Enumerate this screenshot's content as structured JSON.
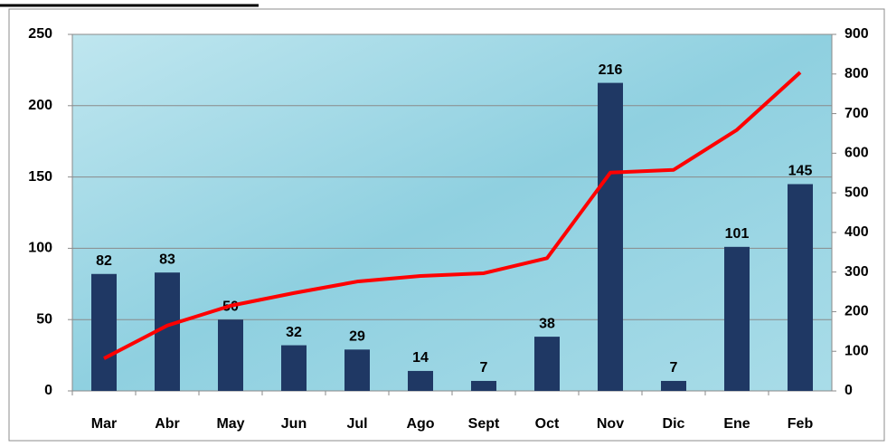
{
  "chart_data": {
    "type": "bar",
    "categories": [
      "Mar",
      "Abr",
      "May",
      "Jun",
      "Jul",
      "Ago",
      "Sept",
      "Oct",
      "Nov",
      "Dic",
      "Ene",
      "Feb"
    ],
    "series": [
      {
        "type": "bar",
        "color": "#1f3864",
        "values": [
          82,
          83,
          50,
          32,
          29,
          14,
          7,
          38,
          216,
          7,
          101,
          145
        ]
      },
      {
        "type": "line",
        "axis": "y2",
        "color": "#ff0000",
        "values": [
          82,
          165,
          215,
          247,
          276,
          290,
          297,
          335,
          551,
          558,
          659,
          804
        ]
      }
    ],
    "ylim": [
      0,
      250
    ],
    "yticks": [
      0,
      50,
      100,
      150,
      200,
      250
    ],
    "y2lim": [
      0,
      900
    ],
    "y2ticks": [
      0,
      100,
      200,
      300,
      400,
      500,
      600,
      700,
      800,
      900
    ],
    "grid": true
  }
}
